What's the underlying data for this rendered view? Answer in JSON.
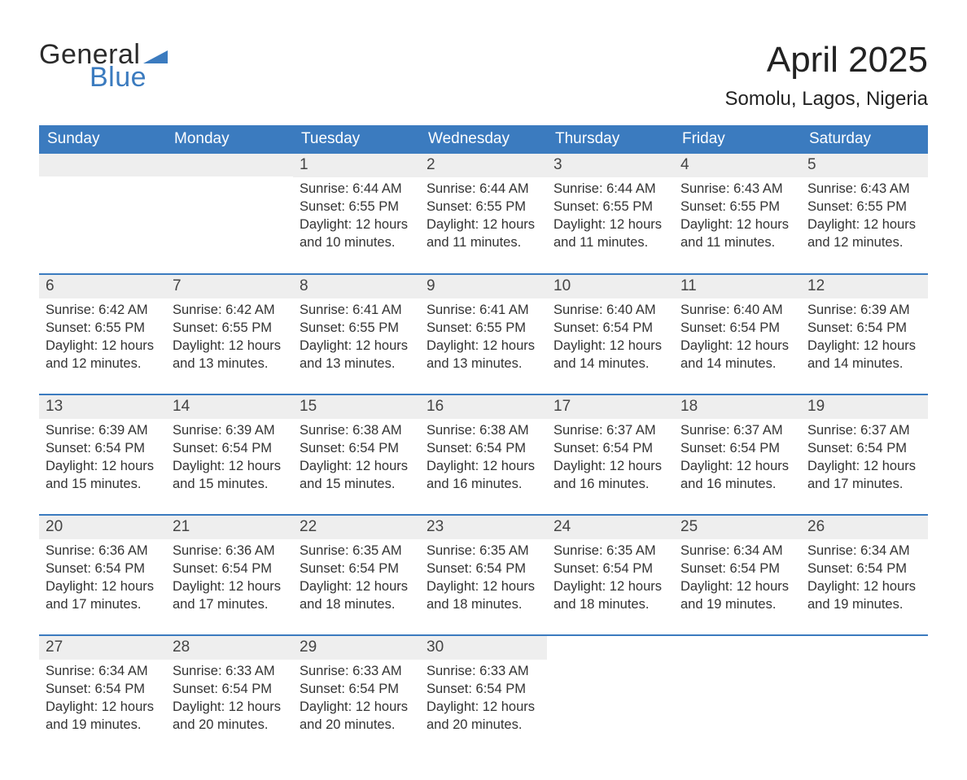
{
  "logo": {
    "word1": "General",
    "word2": "Blue",
    "word1_color": "#2b2b2b",
    "word2_color": "#3b7bbf",
    "flag_color": "#3b7bbf"
  },
  "title": "April 2025",
  "location": "Somolu, Lagos, Nigeria",
  "colors": {
    "header_bg": "#3b7bbf",
    "header_text": "#ffffff",
    "daynum_bg": "#eeeeee",
    "row_border": "#3b7bbf",
    "body_text": "#333333",
    "page_bg": "#ffffff"
  },
  "fonts": {
    "title_size_pt": 33,
    "location_size_pt": 18,
    "dayheader_size_pt": 14,
    "daynum_size_pt": 14,
    "cell_size_pt": 12
  },
  "day_headers": [
    "Sunday",
    "Monday",
    "Tuesday",
    "Wednesday",
    "Thursday",
    "Friday",
    "Saturday"
  ],
  "weeks": [
    [
      null,
      null,
      {
        "n": "1",
        "sunrise": "6:44 AM",
        "sunset": "6:55 PM",
        "daylight": "12 hours and 10 minutes."
      },
      {
        "n": "2",
        "sunrise": "6:44 AM",
        "sunset": "6:55 PM",
        "daylight": "12 hours and 11 minutes."
      },
      {
        "n": "3",
        "sunrise": "6:44 AM",
        "sunset": "6:55 PM",
        "daylight": "12 hours and 11 minutes."
      },
      {
        "n": "4",
        "sunrise": "6:43 AM",
        "sunset": "6:55 PM",
        "daylight": "12 hours and 11 minutes."
      },
      {
        "n": "5",
        "sunrise": "6:43 AM",
        "sunset": "6:55 PM",
        "daylight": "12 hours and 12 minutes."
      }
    ],
    [
      {
        "n": "6",
        "sunrise": "6:42 AM",
        "sunset": "6:55 PM",
        "daylight": "12 hours and 12 minutes."
      },
      {
        "n": "7",
        "sunrise": "6:42 AM",
        "sunset": "6:55 PM",
        "daylight": "12 hours and 13 minutes."
      },
      {
        "n": "8",
        "sunrise": "6:41 AM",
        "sunset": "6:55 PM",
        "daylight": "12 hours and 13 minutes."
      },
      {
        "n": "9",
        "sunrise": "6:41 AM",
        "sunset": "6:55 PM",
        "daylight": "12 hours and 13 minutes."
      },
      {
        "n": "10",
        "sunrise": "6:40 AM",
        "sunset": "6:54 PM",
        "daylight": "12 hours and 14 minutes."
      },
      {
        "n": "11",
        "sunrise": "6:40 AM",
        "sunset": "6:54 PM",
        "daylight": "12 hours and 14 minutes."
      },
      {
        "n": "12",
        "sunrise": "6:39 AM",
        "sunset": "6:54 PM",
        "daylight": "12 hours and 14 minutes."
      }
    ],
    [
      {
        "n": "13",
        "sunrise": "6:39 AM",
        "sunset": "6:54 PM",
        "daylight": "12 hours and 15 minutes."
      },
      {
        "n": "14",
        "sunrise": "6:39 AM",
        "sunset": "6:54 PM",
        "daylight": "12 hours and 15 minutes."
      },
      {
        "n": "15",
        "sunrise": "6:38 AM",
        "sunset": "6:54 PM",
        "daylight": "12 hours and 15 minutes."
      },
      {
        "n": "16",
        "sunrise": "6:38 AM",
        "sunset": "6:54 PM",
        "daylight": "12 hours and 16 minutes."
      },
      {
        "n": "17",
        "sunrise": "6:37 AM",
        "sunset": "6:54 PM",
        "daylight": "12 hours and 16 minutes."
      },
      {
        "n": "18",
        "sunrise": "6:37 AM",
        "sunset": "6:54 PM",
        "daylight": "12 hours and 16 minutes."
      },
      {
        "n": "19",
        "sunrise": "6:37 AM",
        "sunset": "6:54 PM",
        "daylight": "12 hours and 17 minutes."
      }
    ],
    [
      {
        "n": "20",
        "sunrise": "6:36 AM",
        "sunset": "6:54 PM",
        "daylight": "12 hours and 17 minutes."
      },
      {
        "n": "21",
        "sunrise": "6:36 AM",
        "sunset": "6:54 PM",
        "daylight": "12 hours and 17 minutes."
      },
      {
        "n": "22",
        "sunrise": "6:35 AM",
        "sunset": "6:54 PM",
        "daylight": "12 hours and 18 minutes."
      },
      {
        "n": "23",
        "sunrise": "6:35 AM",
        "sunset": "6:54 PM",
        "daylight": "12 hours and 18 minutes."
      },
      {
        "n": "24",
        "sunrise": "6:35 AM",
        "sunset": "6:54 PM",
        "daylight": "12 hours and 18 minutes."
      },
      {
        "n": "25",
        "sunrise": "6:34 AM",
        "sunset": "6:54 PM",
        "daylight": "12 hours and 19 minutes."
      },
      {
        "n": "26",
        "sunrise": "6:34 AM",
        "sunset": "6:54 PM",
        "daylight": "12 hours and 19 minutes."
      }
    ],
    [
      {
        "n": "27",
        "sunrise": "6:34 AM",
        "sunset": "6:54 PM",
        "daylight": "12 hours and 19 minutes."
      },
      {
        "n": "28",
        "sunrise": "6:33 AM",
        "sunset": "6:54 PM",
        "daylight": "12 hours and 20 minutes."
      },
      {
        "n": "29",
        "sunrise": "6:33 AM",
        "sunset": "6:54 PM",
        "daylight": "12 hours and 20 minutes."
      },
      {
        "n": "30",
        "sunrise": "6:33 AM",
        "sunset": "6:54 PM",
        "daylight": "12 hours and 20 minutes."
      },
      null,
      null,
      null
    ]
  ],
  "labels": {
    "sunrise_prefix": "Sunrise: ",
    "sunset_prefix": "Sunset: ",
    "daylight_prefix": "Daylight: "
  }
}
